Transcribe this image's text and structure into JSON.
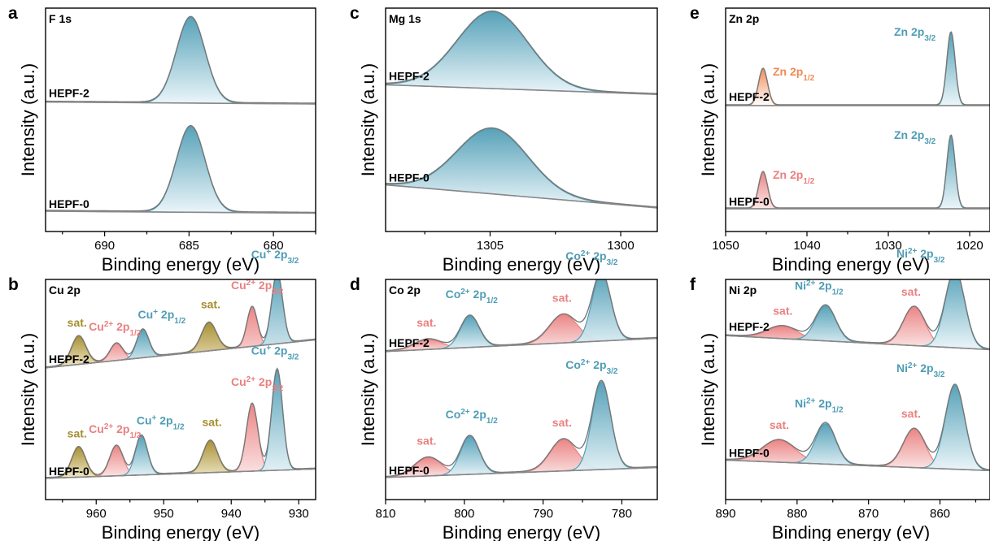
{
  "colors": {
    "teal": "#4f9db5",
    "teal_light": "#eaf5f9",
    "red": "#ea8080",
    "red_light": "#fbe6e6",
    "gold": "#a68d2e",
    "gold_light": "#efe6c6",
    "orange": "#ef8a55",
    "envelope": "#777777",
    "baseline": "#888888",
    "axis": "#000000"
  },
  "chart_data": [
    {
      "panel": "a",
      "type": "area",
      "title": "F 1s",
      "xlabel": "Binding energy (eV)",
      "ylabel": "Intensity (a.u.)",
      "xlim": [
        693.5,
        677.5
      ],
      "xticks": [
        690,
        685,
        680
      ],
      "traces": [
        {
          "label": "HEPF-2",
          "baseline": [
            0.12,
            0.1
          ],
          "peaks": [
            {
              "center": 684.9,
              "fwhm": 2.0,
              "height": 0.88,
              "color": "teal",
              "label": ""
            }
          ]
        },
        {
          "label": "HEPF-0",
          "baseline": [
            0.1,
            0.08
          ],
          "peaks": [
            {
              "center": 684.9,
              "fwhm": 2.0,
              "height": 0.88,
              "color": "teal",
              "label": ""
            }
          ]
        }
      ]
    },
    {
      "panel": "b",
      "type": "area",
      "title": "Cu 2p",
      "xlabel": "Binding energy (eV)",
      "ylabel": "Intensity (a.u.)",
      "xlim": [
        967.5,
        927.5
      ],
      "xticks": [
        960,
        950,
        940,
        930
      ],
      "traces": [
        {
          "label": "HEPF-2",
          "baseline": [
            0.08,
            0.38
          ],
          "peaks": [
            {
              "center": 962.6,
              "fwhm": 2.5,
              "height": 0.3,
              "color": "gold",
              "label": "sat."
            },
            {
              "center": 957.0,
              "fwhm": 2.2,
              "height": 0.18,
              "color": "red",
              "label": "Cu²⁺ 2p₁/₂"
            },
            {
              "center": 953.1,
              "fwhm": 2.1,
              "height": 0.3,
              "color": "teal",
              "label": "Cu⁺ 2p₁/₂"
            },
            {
              "center": 943.3,
              "fwhm": 2.6,
              "height": 0.3,
              "color": "gold",
              "label": "sat."
            },
            {
              "center": 936.9,
              "fwhm": 1.8,
              "height": 0.42,
              "color": "red",
              "label": "Cu²⁺ 2p₃/₂"
            },
            {
              "center": 933.2,
              "fwhm": 1.9,
              "height": 0.76,
              "color": "teal",
              "label": "Cu⁺ 2p₃/₂"
            }
          ]
        },
        {
          "label": "HEPF-0",
          "baseline": [
            0.08,
            0.18
          ],
          "peaks": [
            {
              "center": 962.6,
              "fwhm": 2.4,
              "height": 0.32,
              "color": "gold",
              "label": "sat."
            },
            {
              "center": 957.0,
              "fwhm": 2.3,
              "height": 0.32,
              "color": "red",
              "label": "Cu²⁺ 2p₁/₂"
            },
            {
              "center": 953.3,
              "fwhm": 2.1,
              "height": 0.42,
              "color": "teal",
              "label": "Cu⁺ 2p₁/₂"
            },
            {
              "center": 943.1,
              "fwhm": 2.5,
              "height": 0.34,
              "color": "gold",
              "label": "sat."
            },
            {
              "center": 936.9,
              "fwhm": 2.0,
              "height": 0.72,
              "color": "red",
              "label": "Cu²⁺ 2p₃/₂"
            },
            {
              "center": 933.2,
              "fwhm": 1.9,
              "height": 1.08,
              "color": "teal",
              "label": "Cu⁺ 2p₃/₂"
            }
          ]
        }
      ]
    },
    {
      "panel": "c",
      "type": "area",
      "title": "Mg 1s",
      "xlabel": "Binding energy (eV)",
      "ylabel": "Intensity (a.u.)",
      "xlim": [
        1309.0,
        1298.6
      ],
      "xticks": [
        1305,
        1300
      ],
      "traces": [
        {
          "label": "HEPF-2",
          "baseline": [
            0.2,
            0.1
          ],
          "peaks": [
            {
              "center": 1304.9,
              "fwhm": 3.2,
              "height": 0.8,
              "color": "teal",
              "label": ""
            }
          ]
        },
        {
          "label": "HEPF-0",
          "baseline": [
            0.3,
            0.06
          ],
          "peaks": [
            {
              "center": 1304.9,
              "fwhm": 3.2,
              "height": 0.68,
              "color": "teal",
              "label": ""
            }
          ]
        }
      ]
    },
    {
      "panel": "d",
      "type": "area",
      "title": "Co 2p",
      "xlabel": "Binding energy (eV)",
      "ylabel": "Intensity (a.u.)",
      "xlim": [
        810,
        775.5
      ],
      "xticks": [
        810,
        800,
        790,
        780
      ],
      "traces": [
        {
          "label": "HEPF-2",
          "baseline": [
            0.12,
            0.28
          ],
          "peaks": [
            {
              "center": 804.6,
              "fwhm": 4.0,
              "height": 0.12,
              "color": "red",
              "label": "sat."
            },
            {
              "center": 799.3,
              "fwhm": 2.8,
              "height": 0.38,
              "color": "teal",
              "label": "Co²⁺ 2p₁/₂"
            },
            {
              "center": 787.4,
              "fwhm": 4.2,
              "height": 0.34,
              "color": "red",
              "label": "sat."
            },
            {
              "center": 782.6,
              "fwhm": 2.8,
              "height": 0.82,
              "color": "teal",
              "label": "Co²⁺ 2p₃/₂"
            }
          ]
        },
        {
          "label": "HEPF-0",
          "baseline": [
            0.12,
            0.24
          ],
          "peaks": [
            {
              "center": 804.6,
              "fwhm": 4.0,
              "height": 0.22,
              "color": "red",
              "label": "sat."
            },
            {
              "center": 799.3,
              "fwhm": 2.8,
              "height": 0.46,
              "color": "teal",
              "label": "Co²⁺ 2p₁/₂"
            },
            {
              "center": 787.4,
              "fwhm": 4.0,
              "height": 0.38,
              "color": "red",
              "label": "sat."
            },
            {
              "center": 782.6,
              "fwhm": 2.8,
              "height": 1.06,
              "color": "teal",
              "label": "Co²⁺ 2p₃/₂"
            }
          ]
        }
      ]
    },
    {
      "panel": "e",
      "type": "area",
      "title": "Zn 2p",
      "xlabel": "Binding energy (eV)",
      "ylabel": "Intensity (a.u.)",
      "xlim": [
        1050,
        1017.5
      ],
      "xticks": [
        1050,
        1040,
        1030,
        1020
      ],
      "traces": [
        {
          "label": "HEPF-2",
          "baseline": [
            0.03,
            0.03
          ],
          "peaks": [
            {
              "center": 1045.4,
              "fwhm": 1.3,
              "height": 0.45,
              "color": "orange",
              "label": "Zn 2p₁/₂"
            },
            {
              "center": 1022.3,
              "fwhm": 1.2,
              "height": 0.9,
              "color": "teal",
              "label": "Zn 2p₃/₂"
            }
          ]
        },
        {
          "label": "HEPF-0",
          "baseline": [
            0.03,
            0.03
          ],
          "peaks": [
            {
              "center": 1045.4,
              "fwhm": 1.3,
              "height": 0.45,
              "color": "red",
              "label": "Zn 2p₁/₂"
            },
            {
              "center": 1022.3,
              "fwhm": 1.2,
              "height": 0.9,
              "color": "teal",
              "label": "Zn 2p₃/₂"
            }
          ]
        }
      ]
    },
    {
      "panel": "f",
      "type": "area",
      "title": "Ni 2p",
      "xlabel": "Binding energy (eV)",
      "ylabel": "Intensity (a.u.)",
      "xlim": [
        890,
        853
      ],
      "xticks": [
        890,
        880,
        870,
        860
      ],
      "traces": [
        {
          "label": "HEPF-2",
          "baseline": [
            0.36,
            0.2
          ],
          "peaks": [
            {
              "center": 882.0,
              "fwhm": 5.0,
              "height": 0.14,
              "color": "red",
              "label": "sat."
            },
            {
              "center": 876.0,
              "fwhm": 3.3,
              "height": 0.4,
              "color": "teal",
              "label": "Ni²⁺ 2p₁/₂"
            },
            {
              "center": 863.6,
              "fwhm": 3.6,
              "height": 0.44,
              "color": "red",
              "label": "sat."
            },
            {
              "center": 857.9,
              "fwhm": 3.2,
              "height": 0.88,
              "color": "teal",
              "label": "Ni²⁺ 2p₃/₂"
            }
          ]
        },
        {
          "label": "HEPF-0",
          "baseline": [
            0.2,
            0.08
          ],
          "peaks": [
            {
              "center": 882.5,
              "fwhm": 5.5,
              "height": 0.25,
              "color": "red",
              "label": "sat."
            },
            {
              "center": 876.0,
              "fwhm": 3.3,
              "height": 0.46,
              "color": "teal",
              "label": "Ni²⁺ 2p₁/₂"
            },
            {
              "center": 863.6,
              "fwhm": 3.6,
              "height": 0.44,
              "color": "red",
              "label": "sat."
            },
            {
              "center": 857.9,
              "fwhm": 3.2,
              "height": 0.96,
              "color": "teal",
              "label": "Ni²⁺ 2p₃/₂"
            }
          ]
        }
      ]
    }
  ]
}
